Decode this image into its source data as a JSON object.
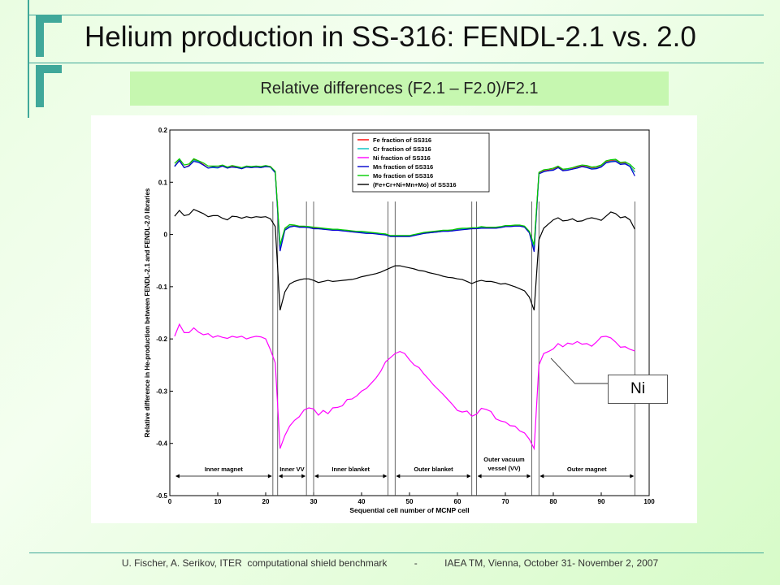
{
  "slide": {
    "title": "Helium production in SS-316: FENDL-2.1 vs. 2.0",
    "subtitle": "Relative differences (F2.1 – F2.0)/F2.1",
    "footer_left": "U. Fischer, A. Serikov, ITER  computational shield benchmark",
    "footer_sep": "-",
    "footer_right": "IAEA TM, Vienna, October 31- November 2, 2007",
    "callout": "Ni",
    "accent_color": "#40a89a",
    "subtitle_bg": "#c6f7b0"
  },
  "chart_data": {
    "type": "line",
    "xlabel": "Sequential cell number of MCNP cell",
    "ylabel": "Relative difference in He-production between FENDL-2.1 and FENDL-2.0 libraries",
    "xlim": [
      0,
      100
    ],
    "ylim": [
      -0.5,
      0.2
    ],
    "xticks": [
      0,
      10,
      20,
      30,
      40,
      50,
      60,
      70,
      80,
      90,
      100
    ],
    "yticks": [
      -0.5,
      -0.4,
      -0.3,
      -0.2,
      -0.1,
      0,
      0.1,
      0.2
    ],
    "grid": false,
    "legend_position": "top-center",
    "region_boundaries": [
      21.5,
      22.5,
      28.5,
      30,
      45.5,
      47,
      63,
      64,
      75.5,
      77,
      97
    ],
    "regions": [
      {
        "label": "Inner magnet",
        "from": 1,
        "to": 21.5
      },
      {
        "label": "Inner VV",
        "from": 22.5,
        "to": 28.5
      },
      {
        "label": "Inner blanket",
        "from": 30,
        "to": 45.5
      },
      {
        "label": "Outer blanket",
        "from": 47,
        "to": 63
      },
      {
        "label": "Outer vacuum",
        "label2": "vessel (VV)",
        "from": 64,
        "to": 75.5
      },
      {
        "label": "Outer magnet",
        "from": 77,
        "to": 97
      }
    ],
    "x": [
      1,
      2,
      3,
      4,
      5,
      6,
      7,
      8,
      9,
      10,
      11,
      12,
      13,
      14,
      15,
      16,
      17,
      18,
      19,
      20,
      21,
      22,
      23,
      24,
      25,
      26,
      27,
      28,
      29,
      30,
      31,
      32,
      33,
      34,
      35,
      36,
      37,
      38,
      39,
      40,
      41,
      42,
      43,
      44,
      45,
      46,
      47,
      48,
      49,
      50,
      51,
      52,
      53,
      54,
      55,
      56,
      57,
      58,
      59,
      60,
      61,
      62,
      63,
      64,
      65,
      66,
      67,
      68,
      69,
      70,
      71,
      72,
      73,
      74,
      75,
      76,
      77,
      78,
      79,
      80,
      81,
      82,
      83,
      84,
      85,
      86,
      87,
      88,
      89,
      90,
      91,
      92,
      93,
      94,
      95,
      96,
      97
    ],
    "series": [
      {
        "name": "Fe fraction of SS316",
        "color": "#ff0000",
        "values": [
          0.131,
          0.143,
          0.128,
          0.132,
          0.143,
          0.14,
          0.134,
          0.127,
          0.129,
          0.128,
          0.132,
          0.127,
          0.13,
          0.129,
          0.126,
          0.13,
          0.128,
          0.13,
          0.129,
          0.131,
          0.13,
          0.12,
          -0.025,
          0.01,
          0.016,
          0.017,
          0.015,
          0.015,
          0.014,
          0.012,
          0.012,
          0.011,
          0.01,
          0.009,
          0.009,
          0.008,
          0.007,
          0.006,
          0.005,
          0.005,
          0.004,
          0.003,
          0.002,
          0.001,
          0.0,
          -0.003,
          -0.003,
          -0.003,
          -0.003,
          -0.003,
          -0.001,
          0.001,
          0.003,
          0.004,
          0.005,
          0.006,
          0.007,
          0.007,
          0.008,
          0.01,
          0.011,
          0.011,
          0.012,
          0.012,
          0.014,
          0.013,
          0.013,
          0.013,
          0.014,
          0.016,
          0.016,
          0.017,
          0.017,
          0.015,
          0.005,
          -0.025,
          0.117,
          0.122,
          0.123,
          0.125,
          0.129,
          0.123,
          0.124,
          0.126,
          0.129,
          0.131,
          0.13,
          0.127,
          0.128,
          0.131,
          0.139,
          0.141,
          0.142,
          0.136,
          0.137,
          0.131,
          0.12
        ]
      },
      {
        "name": "Cr fraction of SS316",
        "color": "#00c0c0",
        "values": [
          0.131,
          0.142,
          0.128,
          0.131,
          0.142,
          0.139,
          0.133,
          0.127,
          0.128,
          0.127,
          0.131,
          0.127,
          0.129,
          0.128,
          0.126,
          0.129,
          0.128,
          0.129,
          0.128,
          0.13,
          0.129,
          0.119,
          -0.026,
          0.009,
          0.016,
          0.016,
          0.014,
          0.014,
          0.014,
          0.011,
          0.011,
          0.01,
          0.01,
          0.008,
          0.009,
          0.008,
          0.006,
          0.005,
          0.005,
          0.004,
          0.003,
          0.002,
          0.002,
          0.001,
          -0.001,
          -0.003,
          -0.003,
          -0.003,
          -0.003,
          -0.003,
          -0.001,
          0.0,
          0.002,
          0.003,
          0.004,
          0.005,
          0.006,
          0.006,
          0.007,
          0.009,
          0.01,
          0.01,
          0.011,
          0.012,
          0.013,
          0.012,
          0.012,
          0.012,
          0.014,
          0.015,
          0.015,
          0.016,
          0.016,
          0.014,
          0.004,
          -0.026,
          0.116,
          0.121,
          0.122,
          0.124,
          0.128,
          0.122,
          0.124,
          0.125,
          0.128,
          0.13,
          0.129,
          0.126,
          0.127,
          0.13,
          0.138,
          0.14,
          0.141,
          0.135,
          0.136,
          0.131,
          0.119
        ]
      },
      {
        "name": "Ni fraction of SS316",
        "color": "#ff00ff",
        "values": [
          -0.195,
          -0.172,
          -0.188,
          -0.188,
          -0.179,
          -0.187,
          -0.192,
          -0.19,
          -0.197,
          -0.194,
          -0.197,
          -0.199,
          -0.195,
          -0.197,
          -0.195,
          -0.2,
          -0.197,
          -0.195,
          -0.196,
          -0.2,
          -0.221,
          -0.246,
          -0.41,
          -0.385,
          -0.367,
          -0.356,
          -0.349,
          -0.336,
          -0.332,
          -0.334,
          -0.346,
          -0.337,
          -0.343,
          -0.332,
          -0.331,
          -0.328,
          -0.316,
          -0.315,
          -0.309,
          -0.3,
          -0.295,
          -0.285,
          -0.275,
          -0.262,
          -0.244,
          -0.236,
          -0.228,
          -0.224,
          -0.228,
          -0.24,
          -0.25,
          -0.255,
          -0.267,
          -0.277,
          -0.288,
          -0.297,
          -0.306,
          -0.316,
          -0.326,
          -0.337,
          -0.34,
          -0.338,
          -0.348,
          -0.344,
          -0.333,
          -0.335,
          -0.339,
          -0.353,
          -0.357,
          -0.359,
          -0.366,
          -0.367,
          -0.376,
          -0.38,
          -0.392,
          -0.41,
          -0.25,
          -0.228,
          -0.224,
          -0.219,
          -0.209,
          -0.215,
          -0.208,
          -0.21,
          -0.205,
          -0.21,
          -0.209,
          -0.214,
          -0.206,
          -0.196,
          -0.195,
          -0.198,
          -0.206,
          -0.216,
          -0.215,
          -0.22,
          -0.223
        ]
      },
      {
        "name": "Mn fraction of SS316",
        "color": "#0000cc",
        "values": [
          0.13,
          0.141,
          0.128,
          0.131,
          0.14,
          0.138,
          0.133,
          0.127,
          0.129,
          0.128,
          0.131,
          0.127,
          0.129,
          0.128,
          0.126,
          0.129,
          0.128,
          0.129,
          0.128,
          0.13,
          0.129,
          0.118,
          -0.032,
          0.008,
          0.014,
          0.016,
          0.014,
          0.014,
          0.013,
          0.011,
          0.011,
          0.01,
          0.009,
          0.008,
          0.008,
          0.007,
          0.006,
          0.005,
          0.004,
          0.003,
          0.002,
          0.002,
          0.001,
          0.0,
          -0.001,
          -0.004,
          -0.004,
          -0.004,
          -0.004,
          -0.004,
          -0.002,
          0.0,
          0.002,
          0.003,
          0.004,
          0.005,
          0.006,
          0.006,
          0.007,
          0.008,
          0.009,
          0.01,
          0.011,
          0.011,
          0.012,
          0.012,
          0.012,
          0.012,
          0.013,
          0.015,
          0.015,
          0.016,
          0.016,
          0.014,
          0.003,
          -0.033,
          0.116,
          0.12,
          0.122,
          0.123,
          0.128,
          0.122,
          0.123,
          0.125,
          0.127,
          0.13,
          0.128,
          0.125,
          0.126,
          0.129,
          0.137,
          0.139,
          0.14,
          0.134,
          0.135,
          0.13,
          0.112
        ]
      },
      {
        "name": "Mo fraction  of SS316",
        "color": "#00cc00",
        "values": [
          0.136,
          0.145,
          0.133,
          0.135,
          0.145,
          0.141,
          0.137,
          0.131,
          0.131,
          0.131,
          0.133,
          0.129,
          0.132,
          0.13,
          0.128,
          0.131,
          0.13,
          0.131,
          0.13,
          0.132,
          0.13,
          0.121,
          -0.02,
          0.012,
          0.019,
          0.018,
          0.016,
          0.016,
          0.015,
          0.014,
          0.013,
          0.012,
          0.011,
          0.01,
          0.01,
          0.009,
          0.008,
          0.007,
          0.006,
          0.006,
          0.005,
          0.004,
          0.003,
          0.002,
          0.001,
          -0.002,
          -0.002,
          -0.002,
          -0.002,
          -0.002,
          0.0,
          0.002,
          0.004,
          0.005,
          0.006,
          0.007,
          0.008,
          0.008,
          0.009,
          0.011,
          0.012,
          0.012,
          0.013,
          0.013,
          0.015,
          0.014,
          0.014,
          0.014,
          0.015,
          0.017,
          0.017,
          0.018,
          0.018,
          0.016,
          0.006,
          -0.02,
          0.119,
          0.124,
          0.125,
          0.127,
          0.131,
          0.125,
          0.126,
          0.128,
          0.131,
          0.133,
          0.132,
          0.129,
          0.13,
          0.133,
          0.141,
          0.143,
          0.144,
          0.138,
          0.139,
          0.134,
          0.125
        ]
      },
      {
        "name": "(Fe+Cr+Ni+Mn+Mo) of SS316",
        "color": "#000000",
        "values": [
          0.035,
          0.046,
          0.036,
          0.038,
          0.048,
          0.044,
          0.04,
          0.034,
          0.036,
          0.036,
          0.031,
          0.028,
          0.035,
          0.034,
          0.031,
          0.034,
          0.032,
          0.034,
          0.033,
          0.034,
          0.03,
          0.015,
          -0.145,
          -0.11,
          -0.095,
          -0.09,
          -0.087,
          -0.085,
          -0.085,
          -0.088,
          -0.092,
          -0.09,
          -0.088,
          -0.09,
          -0.089,
          -0.088,
          -0.087,
          -0.086,
          -0.084,
          -0.081,
          -0.079,
          -0.077,
          -0.075,
          -0.072,
          -0.068,
          -0.064,
          -0.06,
          -0.06,
          -0.062,
          -0.064,
          -0.066,
          -0.069,
          -0.07,
          -0.073,
          -0.075,
          -0.077,
          -0.08,
          -0.082,
          -0.083,
          -0.085,
          -0.086,
          -0.09,
          -0.094,
          -0.09,
          -0.088,
          -0.09,
          -0.09,
          -0.092,
          -0.095,
          -0.094,
          -0.097,
          -0.1,
          -0.104,
          -0.108,
          -0.12,
          -0.145,
          -0.01,
          0.012,
          0.02,
          0.028,
          0.032,
          0.026,
          0.027,
          0.03,
          0.025,
          0.026,
          0.03,
          0.032,
          0.03,
          0.027,
          0.035,
          0.043,
          0.04,
          0.032,
          0.034,
          0.028,
          0.01
        ]
      }
    ]
  }
}
